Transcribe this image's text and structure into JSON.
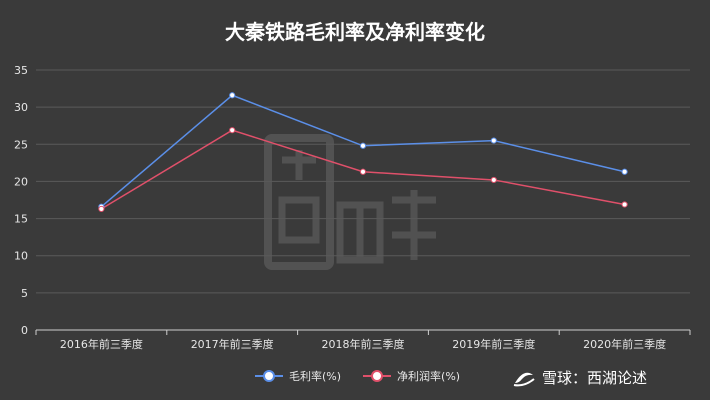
{
  "colors": {
    "background": "#3a3a3a",
    "grid": "#5a5a5a",
    "axis": "#cfcfcf",
    "tick_text": "#e6e6e6",
    "series_gross": "#5b8fe8",
    "series_net": "#e0506a"
  },
  "footer": {
    "watermark": "雪球：西湖论述",
    "watermark_icon": "snowball-logo-icon"
  },
  "chart_data": {
    "type": "line",
    "title": "大秦铁路毛利率及净利率变化",
    "xlabel": "",
    "ylabel": "",
    "categories": [
      "2016年前三季度",
      "2017年前三季度",
      "2018年前三季度",
      "2019年前三季度",
      "2020年前三季度"
    ],
    "ylim": [
      0,
      35
    ],
    "yticks": [
      0,
      5,
      10,
      15,
      20,
      25,
      30,
      35
    ],
    "grid": true,
    "legend_position": "bottom",
    "series": [
      {
        "name": "毛利率(%)",
        "values": [
          16.6,
          31.6,
          24.8,
          25.5,
          21.3
        ]
      },
      {
        "name": "净利润率(%)",
        "values": [
          16.3,
          26.9,
          21.3,
          20.2,
          16.9
        ]
      }
    ]
  }
}
